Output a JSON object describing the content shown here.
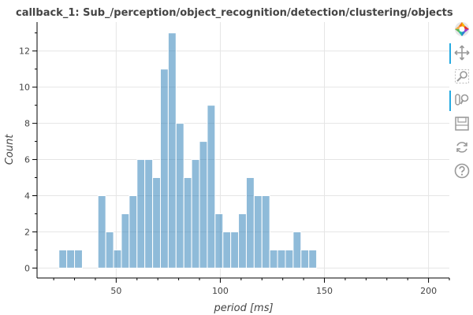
{
  "chart_data": {
    "type": "bar",
    "title": "callback_1: Sub_/perception/object_recognition/detection/clustering/objects",
    "xlabel": "period [ms]",
    "ylabel": "Count",
    "xlim": [
      12,
      210
    ],
    "ylim": [
      -0.55,
      13.6
    ],
    "xticks": [
      50,
      100,
      150,
      200
    ],
    "yticks": [
      0,
      2,
      4,
      6,
      8,
      10,
      12
    ],
    "bin_width": 3.75,
    "bins": [
      {
        "x0": 22.5,
        "count": 1
      },
      {
        "x0": 26.25,
        "count": 1
      },
      {
        "x0": 30.0,
        "count": 1
      },
      {
        "x0": 33.75,
        "count": 0
      },
      {
        "x0": 37.5,
        "count": 0
      },
      {
        "x0": 41.25,
        "count": 4
      },
      {
        "x0": 45.0,
        "count": 2
      },
      {
        "x0": 48.75,
        "count": 1
      },
      {
        "x0": 52.5,
        "count": 3
      },
      {
        "x0": 56.25,
        "count": 4
      },
      {
        "x0": 60.0,
        "count": 6
      },
      {
        "x0": 63.75,
        "count": 6
      },
      {
        "x0": 67.5,
        "count": 5
      },
      {
        "x0": 71.25,
        "count": 11
      },
      {
        "x0": 75.0,
        "count": 13
      },
      {
        "x0": 78.75,
        "count": 8
      },
      {
        "x0": 82.5,
        "count": 5
      },
      {
        "x0": 86.25,
        "count": 6
      },
      {
        "x0": 90.0,
        "count": 7
      },
      {
        "x0": 93.75,
        "count": 9
      },
      {
        "x0": 97.5,
        "count": 3
      },
      {
        "x0": 101.25,
        "count": 2
      },
      {
        "x0": 105.0,
        "count": 2
      },
      {
        "x0": 108.75,
        "count": 3
      },
      {
        "x0": 112.5,
        "count": 5
      },
      {
        "x0": 116.25,
        "count": 4
      },
      {
        "x0": 120.0,
        "count": 4
      },
      {
        "x0": 123.75,
        "count": 1
      },
      {
        "x0": 127.5,
        "count": 1
      },
      {
        "x0": 131.25,
        "count": 1
      },
      {
        "x0": 135.0,
        "count": 2
      },
      {
        "x0": 138.75,
        "count": 1
      },
      {
        "x0": 142.5,
        "count": 1
      }
    ],
    "grid": true,
    "bar_color": "#1f77b4"
  },
  "toolbar": {
    "tools": [
      {
        "icon": "bokeh-logo-icon",
        "active": false
      },
      {
        "icon": "pan-icon",
        "active": true
      },
      {
        "icon": "box-zoom-icon",
        "active": false
      },
      {
        "icon": "wheel-zoom-icon",
        "active": true
      },
      {
        "icon": "save-icon",
        "active": false
      },
      {
        "icon": "reset-icon",
        "active": false
      },
      {
        "icon": "help-icon",
        "active": false
      }
    ]
  }
}
